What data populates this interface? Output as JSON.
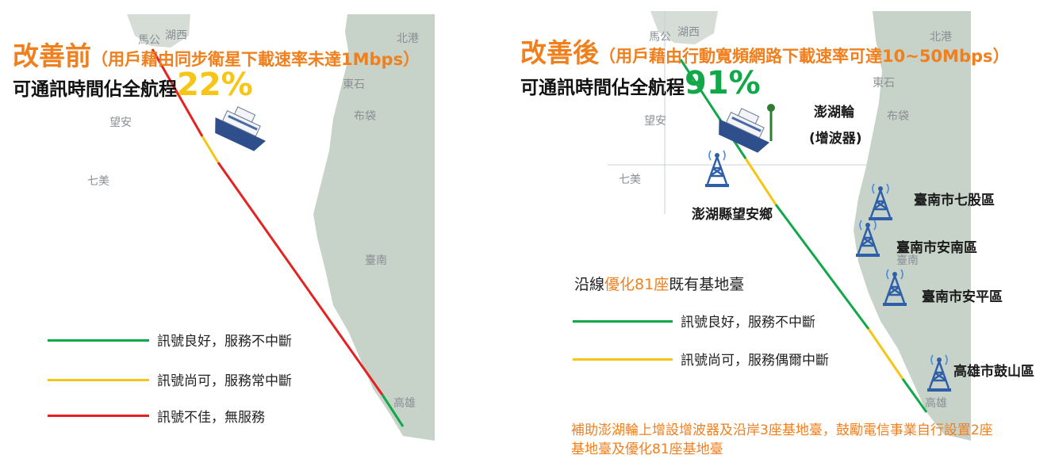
{
  "colors": {
    "good": "#12A84A",
    "fair": "#F5C518",
    "poor": "#E52222",
    "orange": "#F07F1E",
    "land": "#C7D3C9",
    "sea": "#FFFFFF"
  },
  "left": {
    "title_main": "改善前",
    "title_sub": "（用戶藉由同步衛星下載速率未達1Mbps）",
    "coverage_label": "可通訊時間佔全航程",
    "coverage_pct": "22%",
    "map_labels": [
      "馬公",
      "湖西",
      "北港",
      "東石",
      "布袋",
      "望安",
      "七美",
      "臺南",
      "高雄"
    ],
    "legend": [
      {
        "text": "訊號良好，服務不中斷",
        "color_key": "good"
      },
      {
        "text": "訊號尚可，服務常中斷",
        "color_key": "fair"
      },
      {
        "text": "訊號不佳，無服務",
        "color_key": "poor"
      }
    ]
  },
  "right": {
    "title_main": "改善後",
    "title_sub": "（用戶藉由行動寬頻網路下載速率可達10~50Mbps）",
    "coverage_label": "可通訊時間佔全航程",
    "coverage_pct": "91%",
    "map_labels": [
      "馬公",
      "湖西",
      "北港",
      "東石",
      "布袋",
      "望安",
      "七美",
      "臺南",
      "高雄"
    ],
    "ship_label_1": "澎湖輪",
    "ship_label_2": "(增波器)",
    "towers": [
      "澎湖縣望安鄉",
      "臺南市七股區",
      "臺南市安南區",
      "臺南市安平區",
      "高雄市鼓山區"
    ],
    "section_pre": "沿線",
    "section_hl": "優化81座",
    "section_post": "既有基地臺",
    "legend": [
      {
        "text": "訊號良好，服務不中斷",
        "color_key": "good"
      },
      {
        "text": "訊號尚可，服務偶爾中斷",
        "color_key": "fair"
      }
    ],
    "note": "補助澎湖輪上增設增波器及沿岸3座基地臺，鼓勵電信事業自行設置2座基地臺及優化81座基地臺"
  }
}
